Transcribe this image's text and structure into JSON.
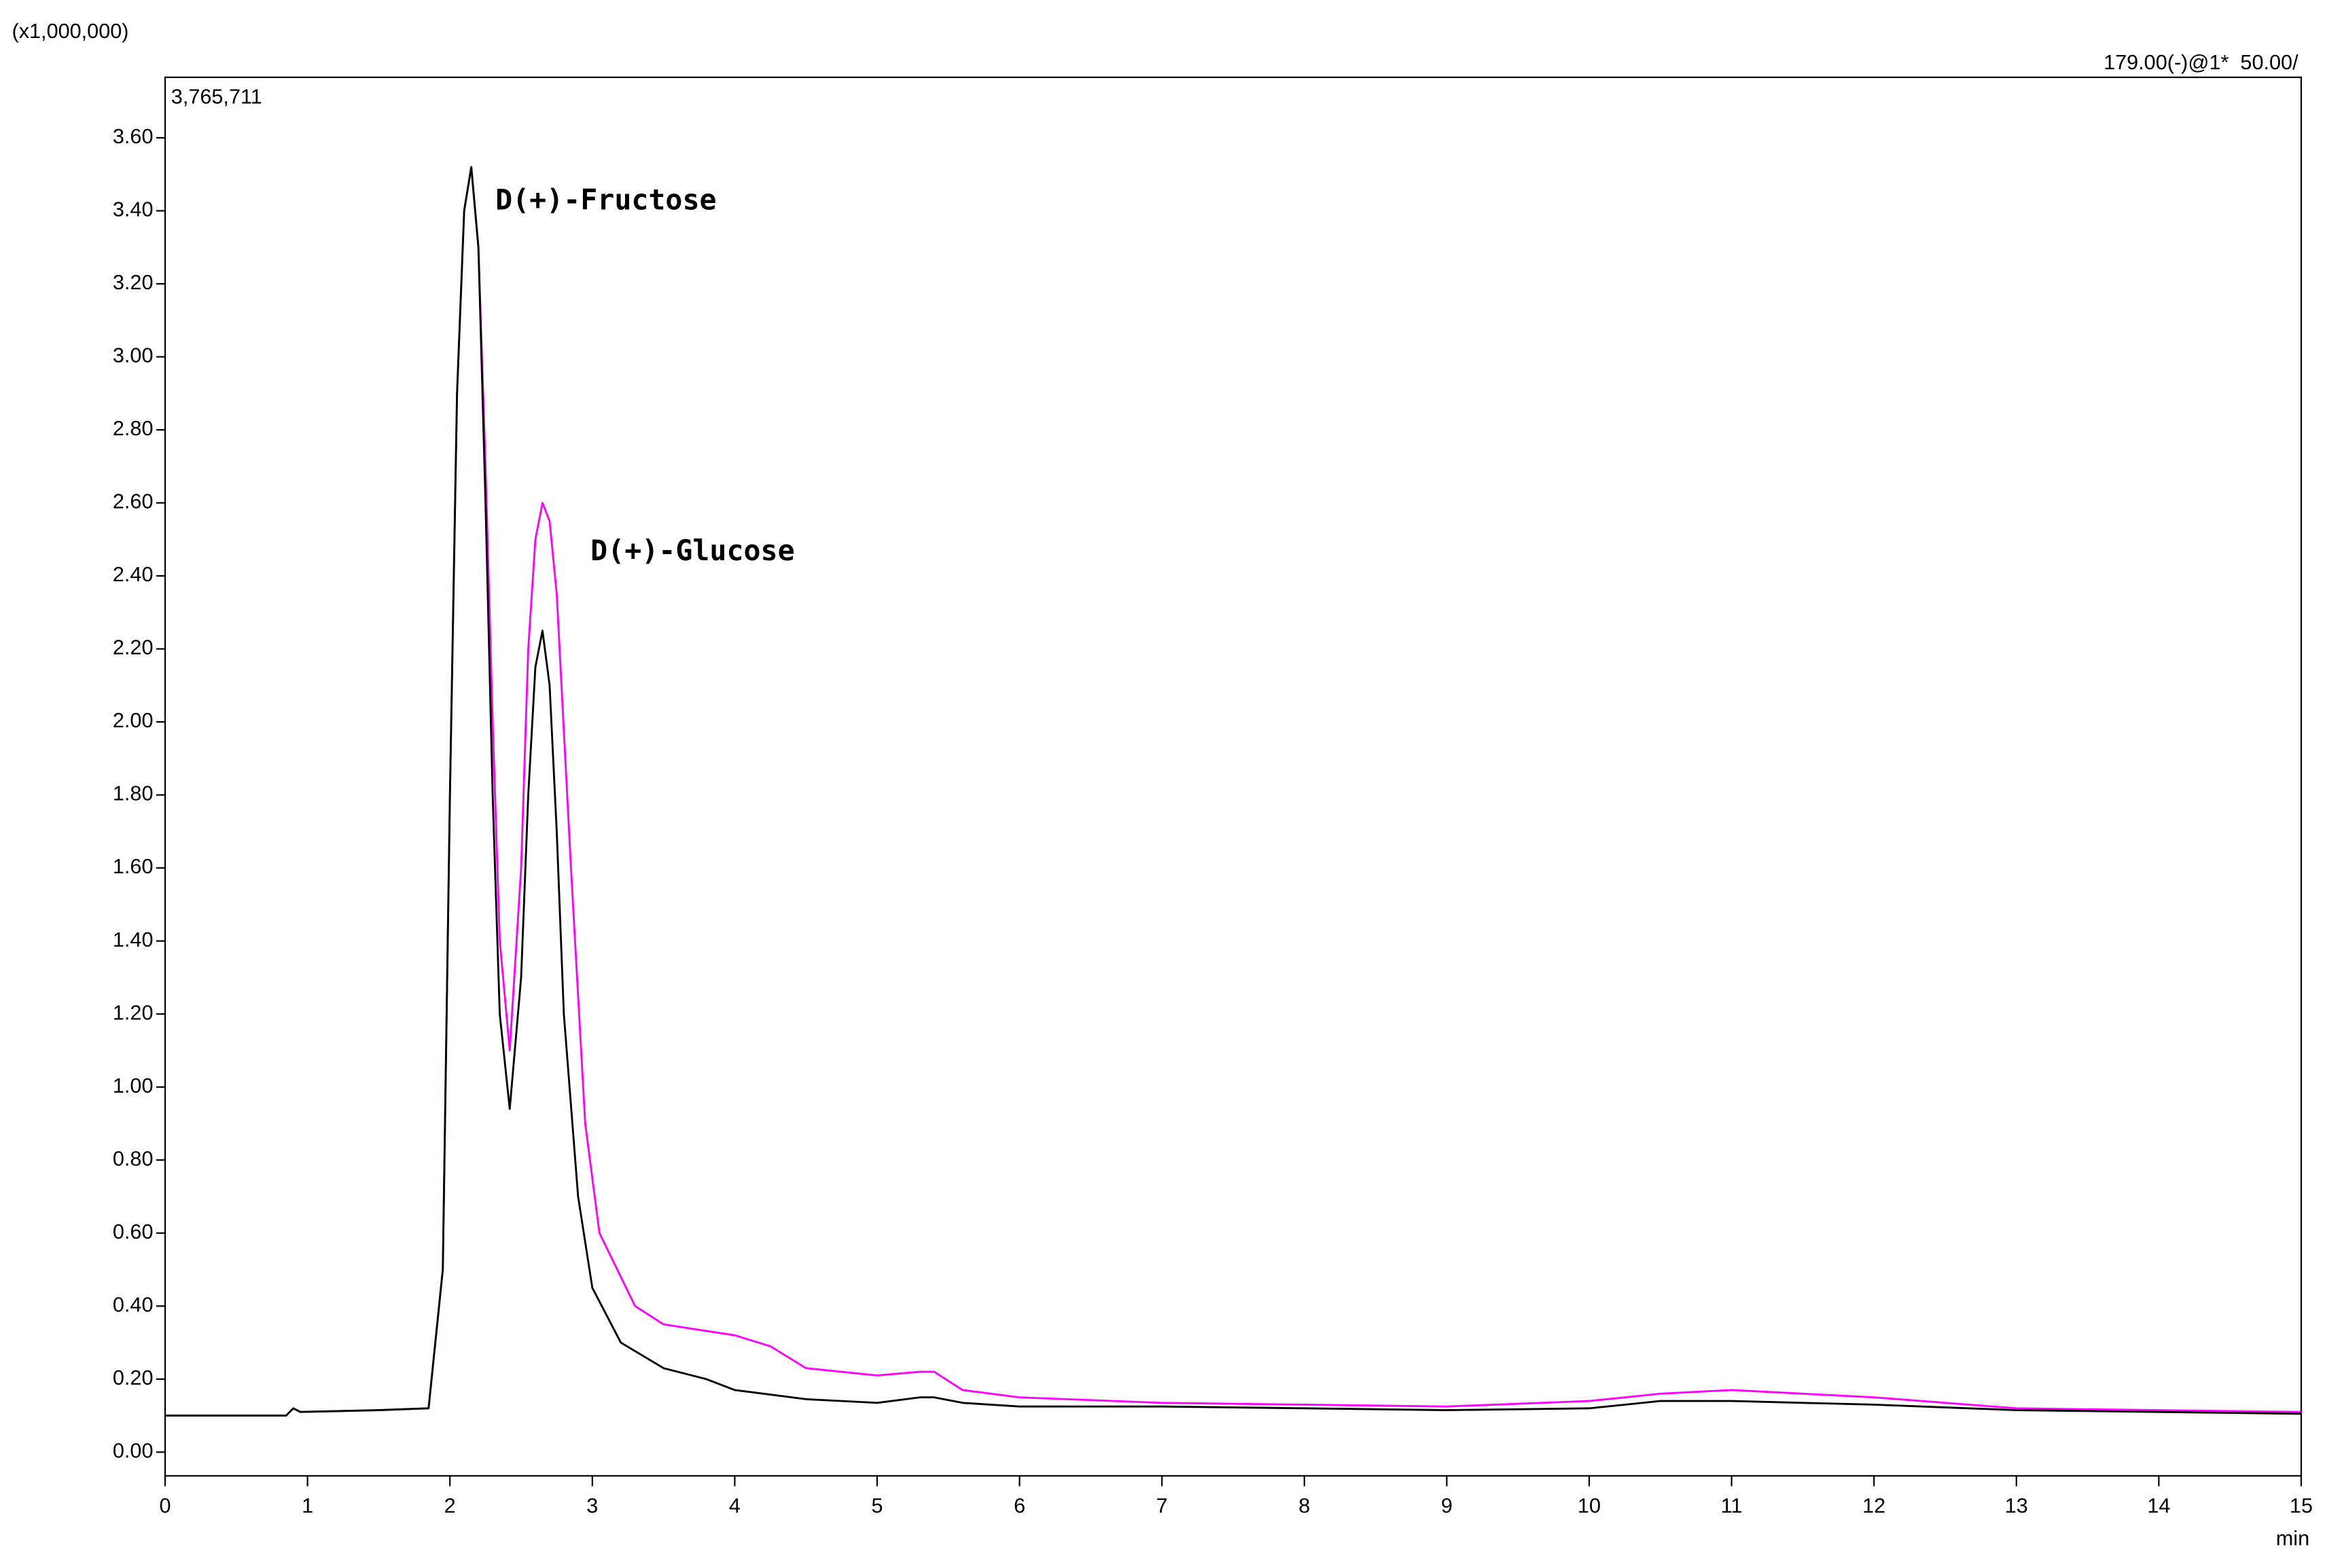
{
  "chart_data": {
    "type": "line",
    "scale_label": "(x1,000,000)",
    "trace_label": "179.00(-)@1*  50.00/",
    "max_label": "3,765,711",
    "xlabel": "min",
    "annotations": [
      "D(+)-Fructose",
      "D(+)-Glucose"
    ],
    "xlim": [
      0,
      15
    ],
    "ylim": [
      -0.065,
      3.765711
    ],
    "xticks": [
      0,
      1,
      2,
      3,
      4,
      5,
      6,
      7,
      8,
      9,
      10,
      11,
      12,
      13,
      14,
      15
    ],
    "yticks": [
      {
        "value": 0,
        "label": "0.00"
      },
      {
        "value": 0.2,
        "label": "0.20"
      },
      {
        "value": 0.4,
        "label": "0.40"
      },
      {
        "value": 0.6,
        "label": "0.60"
      },
      {
        "value": 0.8,
        "label": "0.80"
      },
      {
        "value": 1.0,
        "label": "1.00"
      },
      {
        "value": 1.2,
        "label": "1.20"
      },
      {
        "value": 1.4,
        "label": "1.40"
      },
      {
        "value": 1.6,
        "label": "1.60"
      },
      {
        "value": 1.8,
        "label": "1.80"
      },
      {
        "value": 2.0,
        "label": "2.00"
      },
      {
        "value": 2.2,
        "label": "2.20"
      },
      {
        "value": 2.4,
        "label": "2.40"
      },
      {
        "value": 2.6,
        "label": "2.60"
      },
      {
        "value": 2.8,
        "label": "2.80"
      },
      {
        "value": 3.0,
        "label": "3.00"
      },
      {
        "value": 3.2,
        "label": "3.20"
      },
      {
        "value": 3.4,
        "label": "3.40"
      },
      {
        "value": 3.6,
        "label": "3.60"
      }
    ],
    "series": [
      {
        "color": "#ff00ff",
        "x": [
          0,
          0.85,
          0.9,
          0.95,
          1.5,
          1.85,
          1.95,
          2.0,
          2.05,
          2.1,
          2.15,
          2.2,
          2.25,
          2.3,
          2.35,
          2.42,
          2.5,
          2.55,
          2.6,
          2.65,
          2.7,
          2.75,
          2.85,
          2.95,
          3.05,
          3.3,
          3.5,
          4.0,
          4.25,
          4.5,
          5.0,
          5.3,
          5.4,
          5.6,
          6,
          7,
          8,
          9,
          10,
          10.5,
          11,
          12,
          13,
          15
        ],
        "values": [
          0.1,
          0.1,
          0.12,
          0.11,
          0.115,
          0.12,
          0.5,
          1.8,
          2.9,
          3.4,
          3.52,
          3.3,
          2.7,
          2.0,
          1.4,
          1.1,
          1.6,
          2.2,
          2.5,
          2.6,
          2.55,
          2.35,
          1.6,
          0.9,
          0.6,
          0.4,
          0.35,
          0.32,
          0.29,
          0.23,
          0.21,
          0.22,
          0.22,
          0.17,
          0.15,
          0.135,
          0.13,
          0.125,
          0.14,
          0.16,
          0.17,
          0.15,
          0.12,
          0.11
        ]
      },
      {
        "color": "#000000",
        "x": [
          0,
          0.85,
          0.9,
          0.95,
          1.5,
          1.85,
          1.95,
          2.0,
          2.05,
          2.1,
          2.15,
          2.2,
          2.25,
          2.3,
          2.35,
          2.42,
          2.5,
          2.55,
          2.6,
          2.65,
          2.7,
          2.75,
          2.8,
          2.9,
          3.0,
          3.2,
          3.5,
          3.8,
          4.0,
          4.5,
          5.0,
          5.3,
          5.4,
          5.6,
          6,
          7,
          8,
          9,
          10,
          10.5,
          11,
          12,
          13,
          15
        ],
        "values": [
          0.1,
          0.1,
          0.12,
          0.11,
          0.115,
          0.12,
          0.5,
          1.8,
          2.9,
          3.4,
          3.52,
          3.3,
          2.6,
          1.8,
          1.2,
          0.94,
          1.3,
          1.8,
          2.15,
          2.25,
          2.1,
          1.7,
          1.2,
          0.7,
          0.45,
          0.3,
          0.23,
          0.2,
          0.17,
          0.145,
          0.135,
          0.15,
          0.15,
          0.135,
          0.125,
          0.125,
          0.12,
          0.115,
          0.12,
          0.14,
          0.14,
          0.13,
          0.115,
          0.105
        ]
      }
    ]
  }
}
